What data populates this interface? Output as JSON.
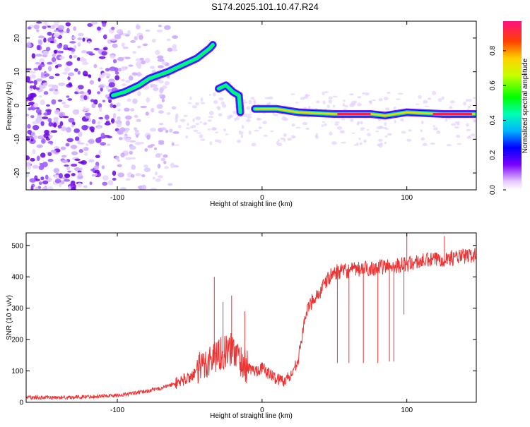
{
  "title": "S174.2025.101.10.47.R24",
  "chart_data": [
    {
      "type": "heatmap",
      "xlabel": "Height of straight line (km)",
      "ylabel": "Frequency (Hz)",
      "xlim": [
        -163,
        148
      ],
      "ylim": [
        -25,
        25
      ],
      "xticks": [
        -100,
        0,
        100
      ],
      "yticks": [
        -20,
        -10,
        0,
        10,
        20
      ],
      "colorbar": {
        "label": "Normalized spectral amplitude",
        "range": [
          0,
          0.97
        ],
        "ticks": [
          0,
          0.2,
          0.4,
          0.6,
          0.8
        ]
      },
      "ridge": [
        {
          "x": -103,
          "y": 3
        },
        {
          "x": -95,
          "y": 4
        },
        {
          "x": -85,
          "y": 6
        },
        {
          "x": -78,
          "y": 8
        },
        {
          "x": -65,
          "y": 10
        },
        {
          "x": -55,
          "y": 12
        },
        {
          "x": -45,
          "y": 14
        },
        {
          "x": -36,
          "y": 17
        },
        {
          "x": -34,
          "y": 18
        },
        {
          "x": -30,
          "y": 5
        },
        {
          "x": -25,
          "y": 6
        },
        {
          "x": -20,
          "y": 4
        },
        {
          "x": -16,
          "y": 3
        },
        {
          "x": -15,
          "y": -2
        },
        {
          "x": -5,
          "y": -1
        },
        {
          "x": 10,
          "y": -1
        },
        {
          "x": 25,
          "y": -2
        },
        {
          "x": 50,
          "y": -2.5
        },
        {
          "x": 75,
          "y": -2.5
        },
        {
          "x": 85,
          "y": -3
        },
        {
          "x": 100,
          "y": -2
        },
        {
          "x": 125,
          "y": -2.5
        },
        {
          "x": 147,
          "y": -2.5
        }
      ]
    },
    {
      "type": "line",
      "xlabel": "Height of straight line (km)",
      "ylabel": "SNR (10 * v/v)",
      "xlim": [
        -163,
        148
      ],
      "ylim": [
        0,
        540
      ],
      "xticks": [
        -100,
        0,
        100
      ],
      "yticks": [
        0,
        100,
        200,
        300,
        400,
        500
      ],
      "color": "#ee3333",
      "series": [
        {
          "x": [
            -163,
            -140,
            -120,
            -100,
            -90,
            -80,
            -70,
            -60,
            -50,
            -45,
            -40,
            -35,
            -32,
            -30,
            -25,
            -22,
            -20,
            -15,
            -10,
            -5,
            0,
            5,
            10,
            15,
            20,
            25,
            28,
            30,
            35,
            40,
            45,
            50,
            60,
            70,
            80,
            90,
            100,
            110,
            120,
            130,
            140,
            148
          ],
          "y": [
            15,
            15,
            18,
            22,
            28,
            35,
            45,
            60,
            80,
            100,
            120,
            140,
            150,
            155,
            160,
            165,
            170,
            135,
            110,
            100,
            110,
            90,
            75,
            70,
            85,
            140,
            220,
            280,
            330,
            350,
            390,
            415,
            420,
            425,
            430,
            435,
            440,
            450,
            455,
            460,
            465,
            470
          ]
        }
      ],
      "spikes_up": [
        {
          "x": -33,
          "y": 400
        },
        {
          "x": -27,
          "y": 320
        },
        {
          "x": -21,
          "y": 340
        },
        {
          "x": -12,
          "y": 290
        },
        {
          "x": 100,
          "y": 540
        },
        {
          "x": 126,
          "y": 530
        }
      ],
      "spikes_down": [
        {
          "x": 52,
          "y": 125
        },
        {
          "x": 60,
          "y": 125
        },
        {
          "x": 70,
          "y": 125
        },
        {
          "x": 80,
          "y": 125
        },
        {
          "x": 88,
          "y": 130
        },
        {
          "x": 91,
          "y": 130
        },
        {
          "x": 98,
          "y": 280
        }
      ]
    }
  ]
}
